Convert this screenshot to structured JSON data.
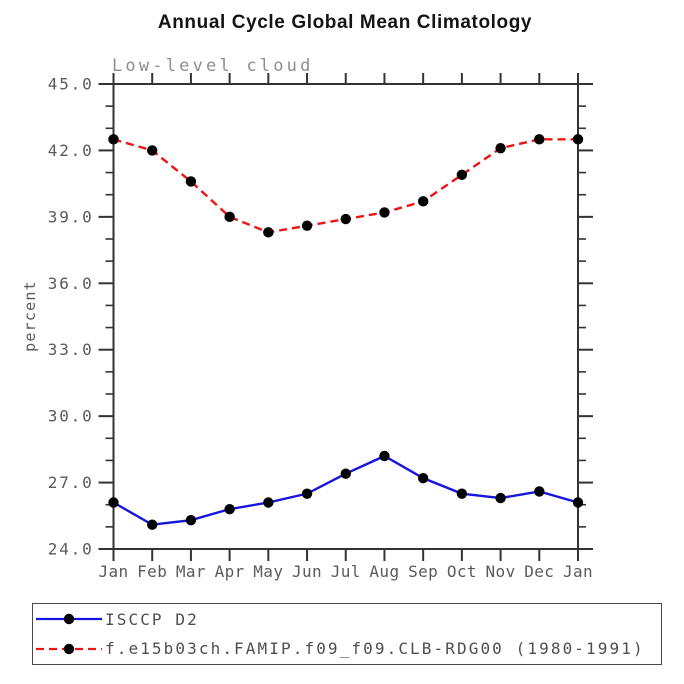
{
  "title": "Annual Cycle Global Mean Climatology",
  "subtitle": "Low-level cloud",
  "ylabel": "percent",
  "legend": {
    "position": "bottom-box",
    "entries": [
      {
        "label": "ISCCP D2",
        "line_color": "#1515dd",
        "line_style": "solid",
        "marker": "black-dot"
      },
      {
        "label": "f.e15b03ch.FAMIP.f09_f09.CLB-RDG00 (1980-1991)",
        "line_color": "#ee1414",
        "line_style": "dashed",
        "marker": "black-dot"
      }
    ]
  },
  "chart_data": {
    "type": "line",
    "title": "Annual Cycle Global Mean Climatology",
    "subtitle": "Low-level cloud",
    "xlabel": "",
    "ylabel": "percent",
    "categories": [
      "Jan",
      "Feb",
      "Mar",
      "Apr",
      "May",
      "Jun",
      "Jul",
      "Aug",
      "Sep",
      "Oct",
      "Nov",
      "Dec",
      "Jan"
    ],
    "ylim": [
      24.0,
      45.0
    ],
    "ytick_major": [
      24.0,
      27.0,
      30.0,
      33.0,
      36.0,
      39.0,
      42.0,
      45.0
    ],
    "ytick_minor_step": 1.0,
    "grid": false,
    "axis_color": "#333333",
    "label_color": "#5a5a5a",
    "marker_radius": 5.2,
    "series": [
      {
        "name": "ISCCP D2",
        "color": "#1515dd",
        "style": "solid",
        "marker_color": "#000000",
        "values": [
          26.1,
          25.1,
          25.3,
          25.8,
          26.1,
          26.5,
          27.4,
          28.2,
          27.2,
          26.5,
          26.3,
          26.6,
          26.1
        ]
      },
      {
        "name": "f.e15b03ch.FAMIP.f09_f09.CLB-RDG00 (1980-1991)",
        "color": "#ee1414",
        "style": "dashed",
        "marker_color": "#000000",
        "values": [
          42.5,
          42.0,
          40.6,
          39.0,
          38.3,
          38.6,
          38.9,
          39.2,
          39.7,
          40.9,
          42.1,
          42.5,
          42.5
        ]
      }
    ]
  }
}
